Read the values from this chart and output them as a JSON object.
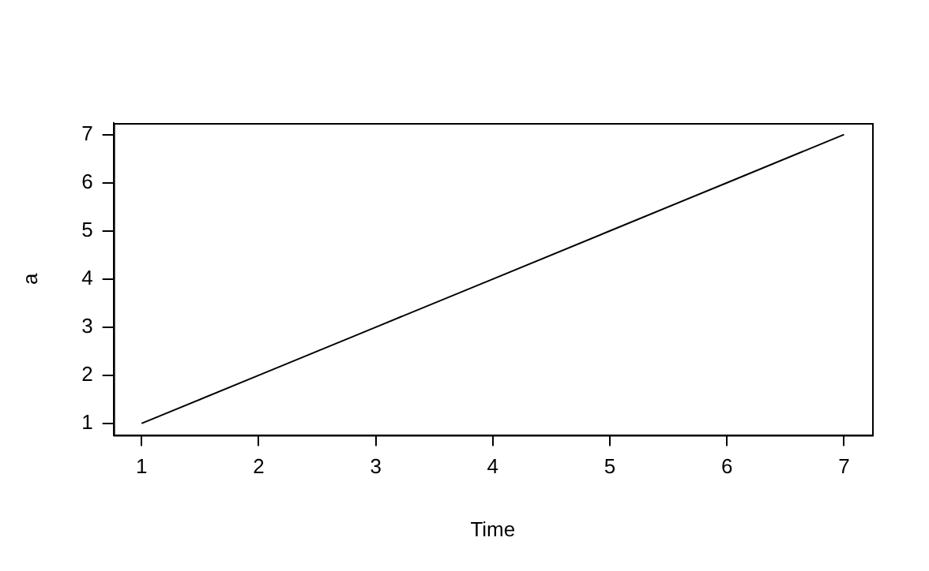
{
  "chart_data": {
    "type": "line",
    "xlabel": "Time",
    "ylabel": "a",
    "x": [
      1,
      2,
      3,
      4,
      5,
      6,
      7
    ],
    "series": [
      {
        "color": "#000000",
        "values": [
          1,
          2,
          3,
          4,
          5,
          6,
          7
        ]
      }
    ],
    "xlim": [
      0.76,
      7.24
    ],
    "ylim": [
      0.76,
      7.24
    ],
    "xticks": [
      1,
      2,
      3,
      4,
      5,
      6,
      7
    ],
    "yticks": [
      1,
      2,
      3,
      4,
      5,
      6,
      7
    ],
    "grid": false,
    "legend": false,
    "marker": "none",
    "line_style": "solid"
  }
}
